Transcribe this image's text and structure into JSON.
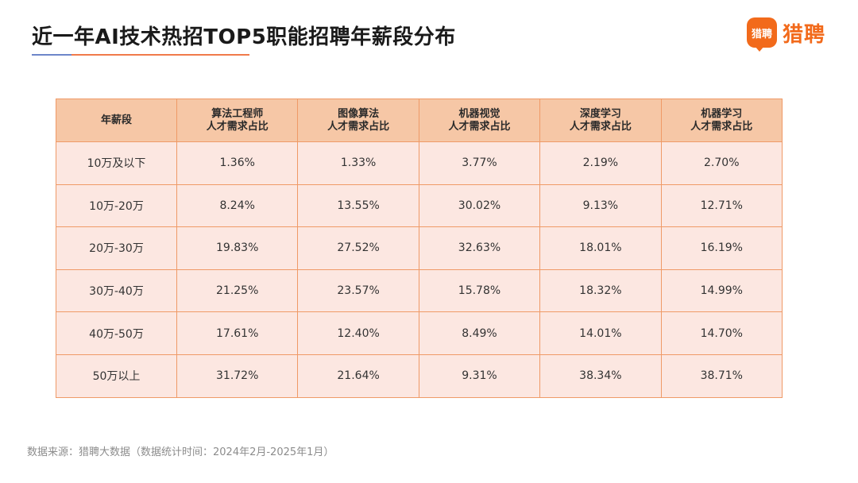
{
  "title": "近一年AI技术热招TOP5职能招聘年薪段分布",
  "logo": {
    "mark": "猎聘",
    "text": "猎聘"
  },
  "colors": {
    "accent": "#f26a1b",
    "header_bg": "#f6c7a6",
    "cell_bg": "#fce7e1",
    "border": "#ef9a67"
  },
  "chart_data": {
    "type": "table",
    "title": "近一年AI技术热招TOP5职能招聘年薪段分布",
    "columns": [
      {
        "line1": "年薪段",
        "line2": ""
      },
      {
        "line1": "算法工程师",
        "line2": "人才需求占比"
      },
      {
        "line1": "图像算法",
        "line2": "人才需求占比"
      },
      {
        "line1": "机器视觉",
        "line2": "人才需求占比"
      },
      {
        "line1": "深度学习",
        "line2": "人才需求占比"
      },
      {
        "line1": "机器学习",
        "line2": "人才需求占比"
      }
    ],
    "rows": [
      [
        "10万及以下",
        "1.36%",
        "1.33%",
        "3.77%",
        "2.19%",
        "2.70%"
      ],
      [
        "10万-20万",
        "8.24%",
        "13.55%",
        "30.02%",
        "9.13%",
        "12.71%"
      ],
      [
        "20万-30万",
        "19.83%",
        "27.52%",
        "32.63%",
        "18.01%",
        "16.19%"
      ],
      [
        "30万-40万",
        "21.25%",
        "23.57%",
        "15.78%",
        "18.32%",
        "14.99%"
      ],
      [
        "40万-50万",
        "17.61%",
        "12.40%",
        "8.49%",
        "14.01%",
        "14.70%"
      ],
      [
        "50万以上",
        "31.72%",
        "21.64%",
        "9.31%",
        "38.34%",
        "38.71%"
      ]
    ]
  },
  "footer": "数据来源：猎聘大数据（数据统计时间：2024年2月-2025年1月）"
}
